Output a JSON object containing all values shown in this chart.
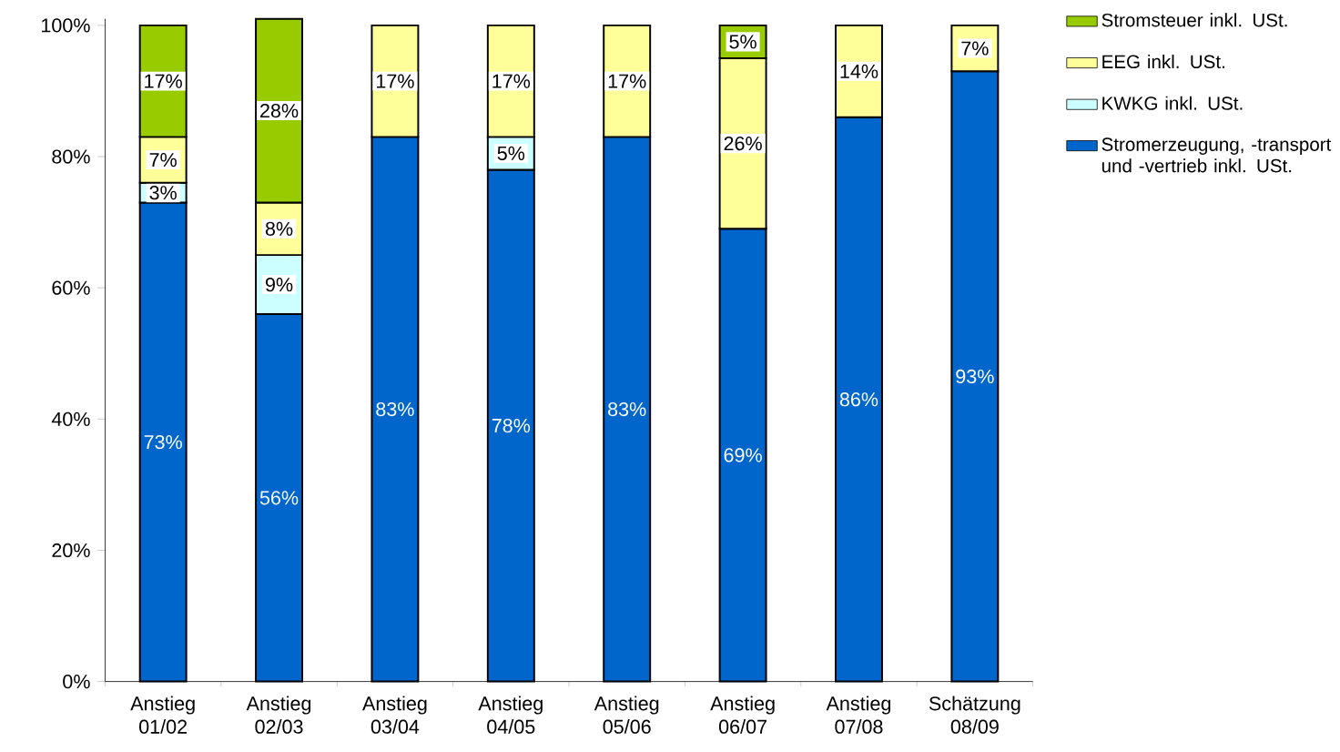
{
  "chart_data": {
    "type": "bar",
    "stacked": true,
    "categories": [
      "Anstieg 01/02",
      "Anstieg 02/03",
      "Anstieg 03/04",
      "Anstieg 04/05",
      "Anstieg 05/06",
      "Anstieg 06/07",
      "Anstieg 07/08",
      "Schätzung 08/09"
    ],
    "ylim": [
      0,
      101
    ],
    "yticks": [
      {
        "value": 0,
        "label": "0%"
      },
      {
        "value": 20,
        "label": "20%"
      },
      {
        "value": 40,
        "label": "40%"
      },
      {
        "value": 60,
        "label": "60%"
      },
      {
        "value": 80,
        "label": "80%"
      },
      {
        "value": 100,
        "label": "100%"
      }
    ],
    "legend": "right",
    "series": [
      {
        "name": "Stromerzeugung, -transport und -vertrieb inkl. USt.",
        "color": "#0066cc",
        "values": [
          73,
          56,
          83,
          78,
          83,
          69,
          86,
          93
        ],
        "value_labels": [
          "73%",
          "56%",
          "83%",
          "78%",
          "83%",
          "69%",
          "86%",
          "93%"
        ]
      },
      {
        "name": "KWKG inkl. USt.",
        "color": "#ccffff",
        "values": [
          3,
          9,
          null,
          5,
          null,
          null,
          null,
          null
        ],
        "value_labels": [
          "3%",
          "9%",
          null,
          "5%",
          null,
          null,
          null,
          null
        ]
      },
      {
        "name": "EEG inkl. USt.",
        "color": "#ffff99",
        "values": [
          7,
          8,
          17,
          17,
          17,
          26,
          14,
          7
        ],
        "value_labels": [
          "7%",
          "8%",
          "17%",
          "17%",
          "17%",
          "26%",
          "14%",
          "7%"
        ]
      },
      {
        "name": "Stromsteuer inkl. USt.",
        "color": "#99cc00",
        "values": [
          17,
          28,
          null,
          null,
          null,
          5,
          null,
          null
        ],
        "value_labels": [
          "17%",
          "28%",
          null,
          null,
          null,
          "5%",
          null,
          null
        ]
      }
    ]
  }
}
